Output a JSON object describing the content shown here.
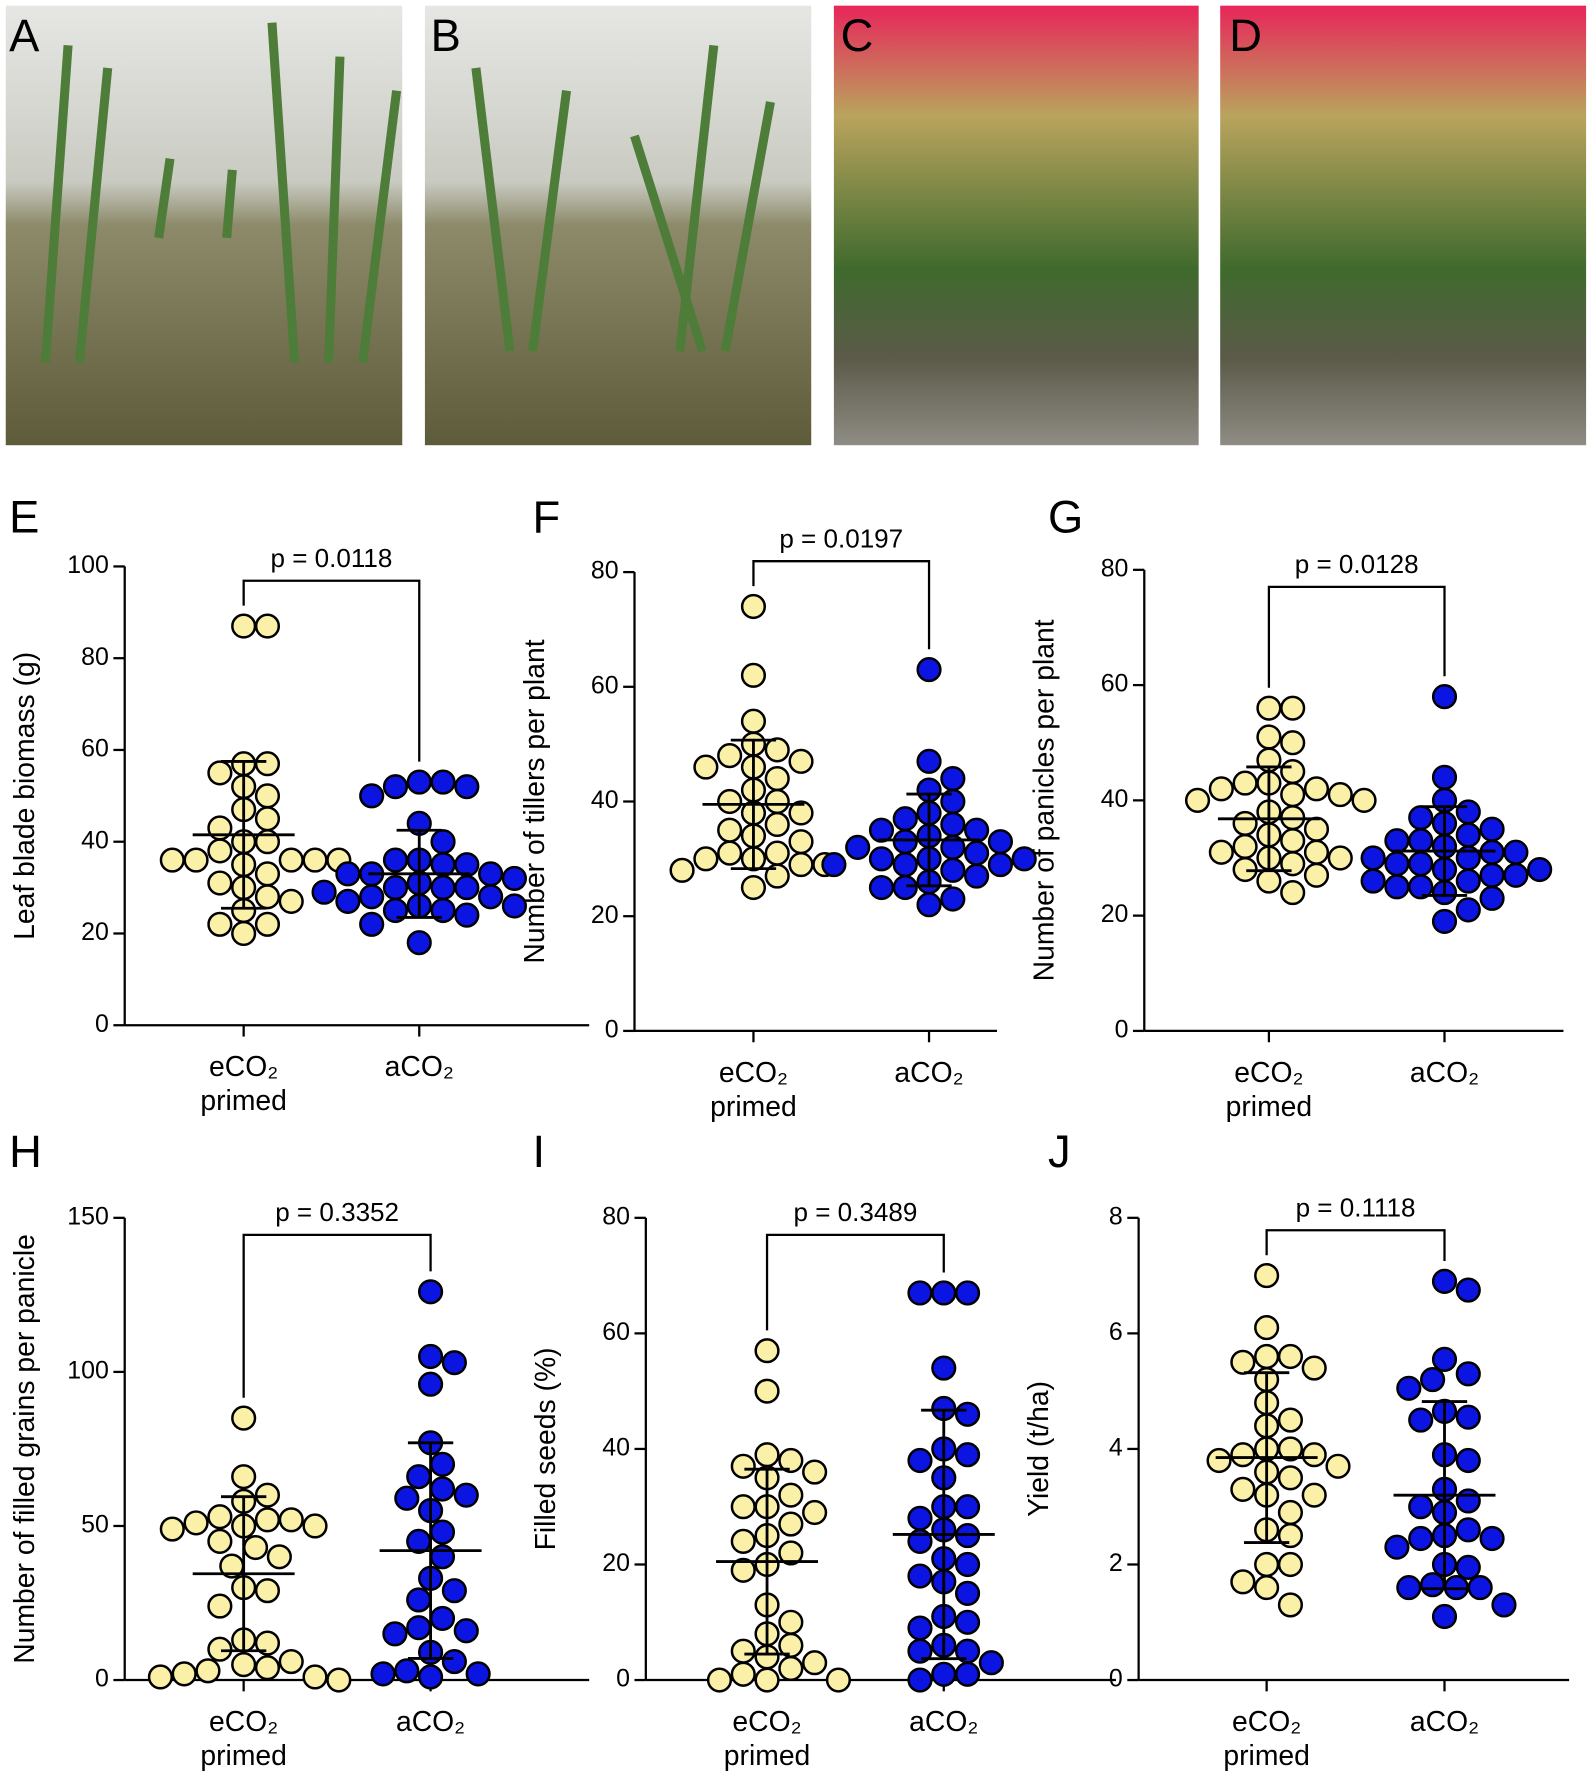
{
  "photos": [
    {
      "label": "A"
    },
    {
      "label": "B"
    },
    {
      "label": "C"
    },
    {
      "label": "D"
    }
  ],
  "chart_data": [
    {
      "type": "dot",
      "panel": "E",
      "ylabel": "Leaf blade biomass (g)",
      "categories": [
        "eCO₂ primed",
        "aCO₂"
      ],
      "annotation": "p = 0.0118",
      "ylim": [
        0,
        100
      ],
      "yticks": [
        0,
        20,
        40,
        60,
        80,
        100
      ],
      "groups": [
        {
          "color": "#fbf0a8",
          "mean": 41.5,
          "sd": 16,
          "values": [
            87,
            87,
            57,
            57,
            55,
            52,
            50,
            47,
            45,
            43,
            40,
            40,
            38,
            36,
            36,
            36,
            36,
            36,
            35,
            33,
            31,
            30,
            28,
            27,
            25,
            22,
            22,
            20
          ]
        },
        {
          "color": "#0b14e0",
          "mean": 33,
          "sd": 9.5,
          "values": [
            53,
            53,
            52,
            52,
            50,
            44,
            40,
            36,
            36,
            35,
            35,
            33,
            33,
            33,
            32,
            31,
            30,
            30,
            30,
            29,
            28,
            28,
            27,
            26,
            26,
            25,
            25,
            24,
            22,
            18
          ]
        }
      ]
    },
    {
      "type": "dot",
      "panel": "F",
      "ylabel": "Number of tillers per plant",
      "categories": [
        "eCO₂ primed",
        "aCO₂"
      ],
      "annotation": "p = 0.0197",
      "ylim": [
        0,
        80
      ],
      "yticks": [
        0,
        20,
        40,
        60,
        80
      ],
      "groups": [
        {
          "color": "#fbf0a8",
          "mean": 39.5,
          "sd": 11.2,
          "values": [
            74,
            62,
            54,
            50,
            49,
            48,
            47,
            46,
            46,
            44,
            42,
            40,
            40,
            38,
            38,
            36,
            35,
            34,
            33,
            31,
            31,
            30,
            30,
            29,
            29,
            28,
            27,
            25
          ]
        },
        {
          "color": "#0b14e0",
          "mean": 33.3,
          "sd": 8,
          "values": [
            63,
            47,
            44,
            42,
            40,
            38,
            37,
            36,
            35,
            35,
            34,
            33,
            33,
            32,
            32,
            31,
            30,
            30,
            30,
            29,
            29,
            29,
            28,
            27,
            26,
            25,
            25,
            23,
            22
          ]
        }
      ]
    },
    {
      "type": "dot",
      "panel": "G",
      "ylabel": "Number of panicles per plant",
      "categories": [
        "eCO₂ primed",
        "aCO₂"
      ],
      "annotation": "p = 0.0128",
      "ylim": [
        0,
        80
      ],
      "yticks": [
        0,
        20,
        40,
        60,
        80
      ],
      "groups": [
        {
          "color": "#fbf0a8",
          "mean": 36.8,
          "sd": 9,
          "values": [
            56,
            56,
            51,
            50,
            47,
            45,
            43,
            43,
            42,
            42,
            41,
            41,
            40,
            40,
            38,
            37,
            36,
            35,
            34,
            33,
            32,
            31,
            31,
            30,
            30,
            29,
            28,
            27,
            26,
            24
          ]
        },
        {
          "color": "#0b14e0",
          "mean": 31.2,
          "sd": 7.7,
          "values": [
            58,
            44,
            40,
            38,
            37,
            36,
            35,
            34,
            33,
            33,
            32,
            31,
            31,
            30,
            30,
            29,
            29,
            28,
            28,
            27,
            27,
            26,
            26,
            25,
            25,
            24,
            23,
            21,
            19
          ]
        }
      ]
    },
    {
      "type": "dot",
      "panel": "H",
      "ylabel": "Number of filled grains per panicle",
      "categories": [
        "eCO₂ primed",
        "aCO₂"
      ],
      "annotation": "p = 0.3352",
      "ylim": [
        0,
        150
      ],
      "yticks": [
        0,
        50,
        100,
        150
      ],
      "groups": [
        {
          "color": "#fbf0a8",
          "mean": 34.5,
          "sd": 25,
          "values": [
            85,
            66,
            60,
            58,
            53,
            52,
            52,
            51,
            50,
            50,
            49,
            45,
            43,
            40,
            37,
            30,
            29,
            24,
            13,
            12,
            10,
            6,
            5,
            4,
            3,
            2,
            1,
            1,
            0
          ]
        },
        {
          "color": "#0b14e0",
          "mean": 42,
          "sd": 35,
          "values": [
            126,
            105,
            103,
            96,
            77,
            70,
            66,
            62,
            60,
            59,
            55,
            48,
            45,
            40,
            33,
            29,
            26,
            20,
            17,
            16,
            15,
            9,
            6,
            3,
            2,
            2,
            1
          ]
        }
      ]
    },
    {
      "type": "dot",
      "panel": "I",
      "ylabel": "Filled seeds (%)",
      "categories": [
        "eCO₂ primed",
        "aCO₂"
      ],
      "annotation": "p = 0.3489",
      "ylim": [
        0,
        80
      ],
      "yticks": [
        0,
        20,
        40,
        60,
        80
      ],
      "groups": [
        {
          "color": "#fbf0a8",
          "mean": 20.5,
          "sd": 16,
          "values": [
            57,
            50,
            39,
            38,
            37,
            36,
            35,
            32,
            30,
            30,
            29,
            27,
            25,
            24,
            22,
            20,
            19,
            13,
            10,
            8,
            6,
            5,
            4,
            3,
            2,
            1,
            0,
            0,
            0
          ]
        },
        {
          "color": "#0b14e0",
          "mean": 25.2,
          "sd": 21.5,
          "values": [
            67,
            67,
            67,
            54,
            47,
            46,
            40,
            39,
            38,
            35,
            30,
            30,
            28,
            26,
            25,
            24,
            21,
            20,
            18,
            17,
            15,
            11,
            10,
            9,
            6,
            5,
            5,
            3,
            1,
            1,
            0
          ]
        }
      ]
    },
    {
      "type": "dot",
      "panel": "J",
      "ylabel": "Yield (t/ha)",
      "categories": [
        "eCO₂ primed",
        "aCO₂"
      ],
      "annotation": "p = 0.1118",
      "ylim": [
        0,
        8
      ],
      "yticks": [
        0,
        2,
        4,
        6,
        8
      ],
      "groups": [
        {
          "color": "#fbf0a8",
          "mean": 3.85,
          "sd": 1.47,
          "values": [
            7,
            6.1,
            5.6,
            5.6,
            5.5,
            5.4,
            5.2,
            4.8,
            4.5,
            4.4,
            4,
            4,
            3.9,
            3.9,
            3.8,
            3.7,
            3.6,
            3.5,
            3.3,
            3.2,
            3.2,
            2.9,
            2.6,
            2.5,
            2,
            2,
            1.7,
            1.6,
            1.3
          ]
        },
        {
          "color": "#0b14e0",
          "mean": 3.2,
          "sd": 1.62,
          "values": [
            6.9,
            6.75,
            5.55,
            5.3,
            5.2,
            5.05,
            4.65,
            4.55,
            4.5,
            3.9,
            3.8,
            3.3,
            3.1,
            3,
            2.9,
            2.6,
            2.5,
            2.45,
            2.45,
            2.3,
            2,
            1.95,
            1.65,
            1.6,
            1.6,
            1.6,
            1.3,
            1.1
          ]
        }
      ]
    }
  ]
}
